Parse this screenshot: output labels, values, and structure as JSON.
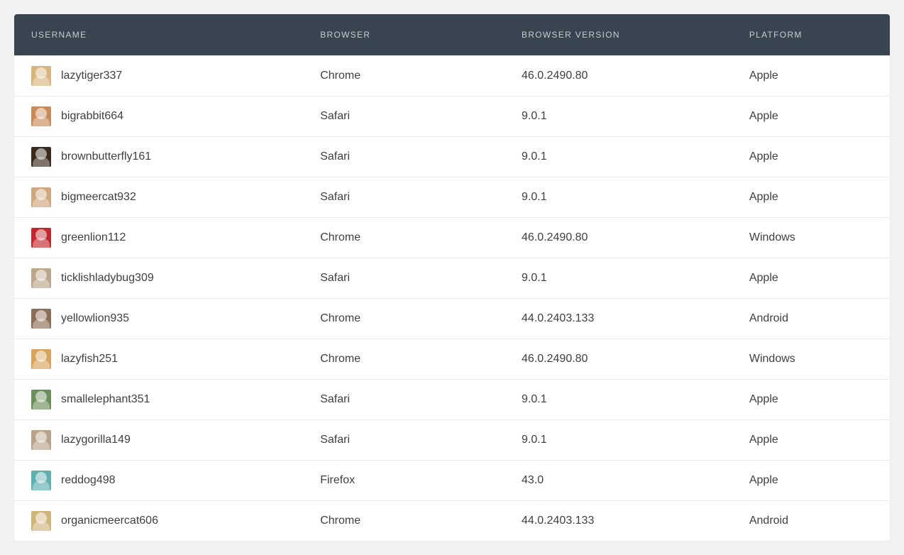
{
  "table": {
    "header_bg": "#394451",
    "header_fg": "#c7cbd0",
    "row_border": "#ececec",
    "body_bg": "#ffffff",
    "page_bg": "#f2f2f2",
    "text_color": "#404040",
    "columns": [
      {
        "key": "username",
        "label": "USERNAME"
      },
      {
        "key": "browser",
        "label": "BROWSER"
      },
      {
        "key": "browser_version",
        "label": "BROWSER VERSION"
      },
      {
        "key": "platform",
        "label": "PLATFORM"
      }
    ],
    "rows": [
      {
        "avatar_color": "#d9b47f",
        "username": "lazytiger337",
        "browser": "Chrome",
        "browser_version": "46.0.2490.80",
        "platform": "Apple"
      },
      {
        "avatar_color": "#c98a5a",
        "username": "bigrabbit664",
        "browser": "Safari",
        "browser_version": "9.0.1",
        "platform": "Apple"
      },
      {
        "avatar_color": "#3a2a1c",
        "username": "brownbutterfly161",
        "browser": "Safari",
        "browser_version": "9.0.1",
        "platform": "Apple"
      },
      {
        "avatar_color": "#cfa77e",
        "username": "bigmeercat932",
        "browser": "Safari",
        "browser_version": "9.0.1",
        "platform": "Apple"
      },
      {
        "avatar_color": "#c2272d",
        "username": "greenlion112",
        "browser": "Chrome",
        "browser_version": "46.0.2490.80",
        "platform": "Windows"
      },
      {
        "avatar_color": "#bca68a",
        "username": "ticklishladybug309",
        "browser": "Safari",
        "browser_version": "9.0.1",
        "platform": "Apple"
      },
      {
        "avatar_color": "#8c6d56",
        "username": "yellowlion935",
        "browser": "Chrome",
        "browser_version": "44.0.2403.133",
        "platform": "Android"
      },
      {
        "avatar_color": "#d8a45b",
        "username": "lazyfish251",
        "browser": "Chrome",
        "browser_version": "46.0.2490.80",
        "platform": "Windows"
      },
      {
        "avatar_color": "#6b8f5a",
        "username": "smallelephant351",
        "browser": "Safari",
        "browser_version": "9.0.1",
        "platform": "Apple"
      },
      {
        "avatar_color": "#b8a28a",
        "username": "lazygorilla149",
        "browser": "Safari",
        "browser_version": "9.0.1",
        "platform": "Apple"
      },
      {
        "avatar_color": "#5fb0b0",
        "username": "reddog498",
        "browser": "Firefox",
        "browser_version": "43.0",
        "platform": "Apple"
      },
      {
        "avatar_color": "#d0b57a",
        "username": "organicmeercat606",
        "browser": "Chrome",
        "browser_version": "44.0.2403.133",
        "platform": "Android"
      }
    ]
  }
}
